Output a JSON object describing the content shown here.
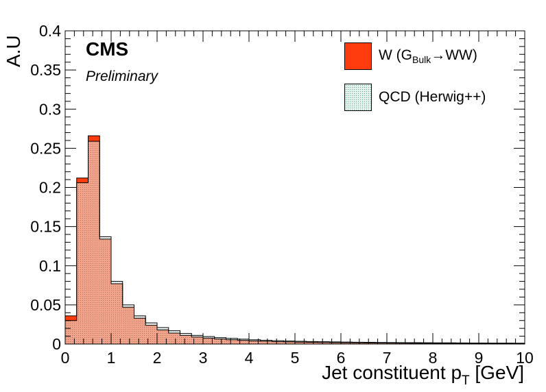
{
  "chart_data": {
    "type": "bar",
    "experiment_label": "CMS",
    "status_label": "Preliminary",
    "xlabel_main": "Jet constituent p",
    "xlabel_sub": "T",
    "xlabel_unit": " [GeV]",
    "ylabel": "A.U",
    "xlim": [
      0,
      10
    ],
    "ylim": [
      0,
      0.4
    ],
    "bin_width": 0.25,
    "x_ticks": [
      "0",
      "1",
      "2",
      "3",
      "4",
      "5",
      "6",
      "7",
      "8",
      "9",
      "10"
    ],
    "y_ticks": [
      "0",
      "0.05",
      "0.1",
      "0.15",
      "0.2",
      "0.25",
      "0.3",
      "0.35",
      "0.4"
    ],
    "bin_edges": [
      0,
      0.25,
      0.5,
      0.75,
      1,
      1.25,
      1.5,
      1.75,
      2,
      2.25,
      2.5,
      2.75,
      3,
      3.25,
      3.5,
      3.75,
      4,
      4.25,
      4.5,
      4.75,
      5,
      5.25,
      5.5,
      5.75,
      6,
      6.25,
      6.5,
      6.75,
      7,
      7.25,
      7.5,
      7.75,
      8,
      8.25,
      8.5,
      8.75,
      9,
      9.25,
      9.5,
      9.75,
      10
    ],
    "series": [
      {
        "name": "W (G",
        "name_sub": "Bulk",
        "name_tail": "→WW)",
        "color": "#ff3c0e",
        "values": [
          0.036,
          0.212,
          0.266,
          0.134,
          0.077,
          0.047,
          0.033,
          0.024,
          0.018,
          0.014,
          0.011,
          0.009,
          0.0075,
          0.0065,
          0.0055,
          0.0047,
          0.004,
          0.0035,
          0.003,
          0.0027,
          0.0024,
          0.0022,
          0.002,
          0.0018,
          0.0016,
          0.0015,
          0.0014,
          0.0013,
          0.0012,
          0.0011,
          0.001,
          0.001,
          0.0009,
          0.0009,
          0.0008,
          0.0008,
          0.0007,
          0.0007,
          0.0007,
          0.0006
        ]
      },
      {
        "name": "QCD (Herwig++)",
        "color": "#e4f2ee",
        "hatch_color": "#3c8c78",
        "values": [
          0.03,
          0.206,
          0.259,
          0.137,
          0.08,
          0.05,
          0.036,
          0.027,
          0.021,
          0.017,
          0.0135,
          0.011,
          0.0095,
          0.0082,
          0.0072,
          0.0062,
          0.0055,
          0.0048,
          0.0043,
          0.0038,
          0.0035,
          0.0032,
          0.0029,
          0.0027,
          0.0025,
          0.0023,
          0.0022,
          0.002,
          0.0019,
          0.0018,
          0.0017,
          0.0016,
          0.0015,
          0.0015,
          0.0014,
          0.0013,
          0.0013,
          0.0012,
          0.0012,
          0.0011
        ]
      }
    ]
  }
}
